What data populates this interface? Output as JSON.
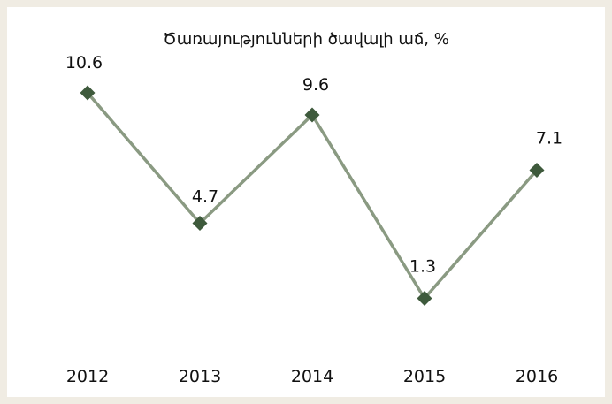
{
  "chart_data": {
    "type": "line",
    "title": "Ծառայությունների ծավալի աճ, %",
    "xlabel": "",
    "ylabel": "",
    "categories": [
      "2012",
      "2013",
      "2014",
      "2015",
      "2016"
    ],
    "series": [
      {
        "values": [
          10.6,
          4.7,
          9.6,
          1.3,
          7.1
        ],
        "labels": [
          "10.6",
          "4.7",
          "9.6",
          "1.3",
          "7.1"
        ]
      }
    ],
    "ylim": [
      0,
      12
    ],
    "grid": false,
    "legend": "none",
    "colors": {
      "line": "#8a9a82",
      "marker": "#3e5a3c",
      "background": "#ffffff",
      "border": "#f0ece3"
    }
  }
}
